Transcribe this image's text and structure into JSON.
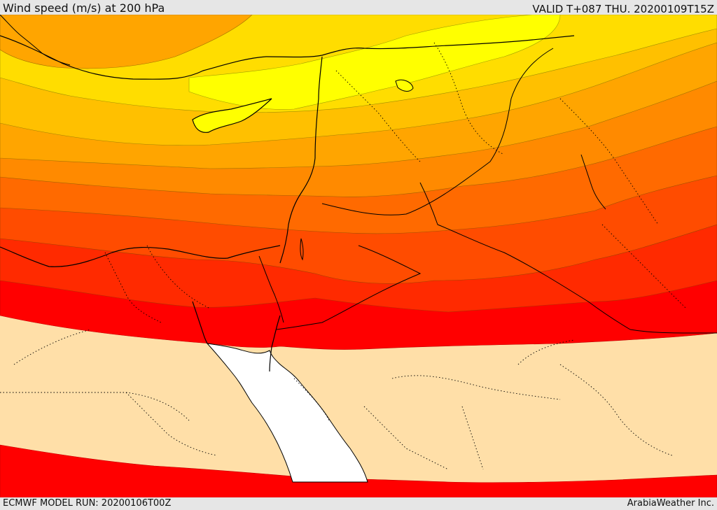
{
  "header": {
    "title": "Wind speed (m/s) at 200 hPa",
    "valid_time": "VALID T+087 THU. 20200109T15Z"
  },
  "footer": {
    "model_run": "ECMWF MODEL RUN: 20200106T00Z",
    "credit": "ArabiaWeather Inc."
  },
  "map": {
    "parameter": "wind speed at 200 hPa",
    "units": "m/s",
    "colors": {
      "band_lowest": "#ffdfa8",
      "band_1": "#ffff00",
      "band_2": "#ffdd00",
      "band_3": "#ffc000",
      "band_4": "#ffa500",
      "band_5": "#ff8a00",
      "band_6": "#ff6a00",
      "band_7": "#ff4c00",
      "band_8": "#ff2a00",
      "band_highest": "#ff0000",
      "sea": "#ffffff",
      "coastline": "#000000",
      "border": "#000000"
    }
  }
}
